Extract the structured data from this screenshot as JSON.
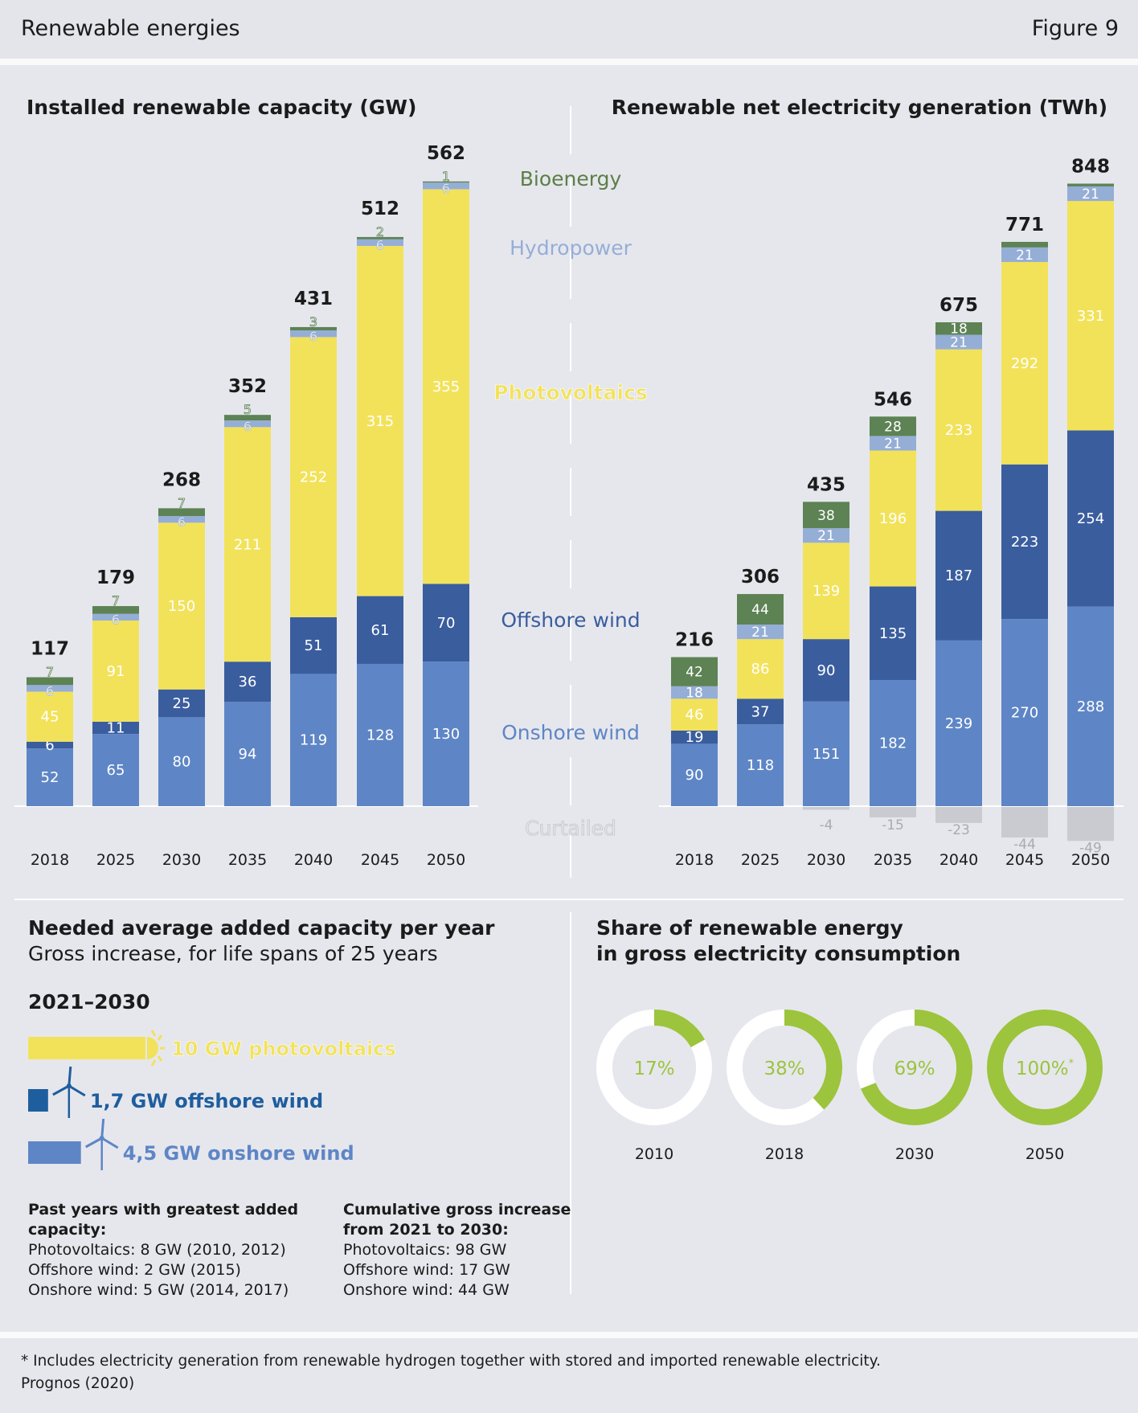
{
  "header": {
    "title": "Renewable energies",
    "figure": "Figure 9"
  },
  "chart_data": [
    {
      "type": "bar",
      "title": "Installed renewable capacity (GW)",
      "stacked": true,
      "categories": [
        "2018",
        "2025",
        "2030",
        "2035",
        "2040",
        "2045",
        "2050"
      ],
      "totals": [
        117,
        179,
        268,
        352,
        431,
        512,
        562
      ],
      "series": [
        {
          "name": "Onshore wind",
          "color": "#5e86c6",
          "values": [
            52,
            65,
            80,
            94,
            119,
            128,
            130
          ]
        },
        {
          "name": "Offshore wind",
          "color": "#3a5d9e",
          "values": [
            6,
            11,
            25,
            36,
            51,
            61,
            70
          ]
        },
        {
          "name": "Photovoltaics",
          "color": "#f2e25a",
          "values": [
            45,
            91,
            150,
            211,
            252,
            315,
            355
          ]
        },
        {
          "name": "Hydropower",
          "color": "#95aed6",
          "values": [
            6,
            6,
            6,
            6,
            6,
            6,
            6
          ]
        },
        {
          "name": "Bioenergy",
          "color": "#5d8254",
          "values": [
            7,
            7,
            7,
            5,
            3,
            2,
            1
          ]
        }
      ]
    },
    {
      "type": "bar",
      "title": "Renewable net electricity generation (TWh)",
      "stacked": true,
      "categories": [
        "2018",
        "2025",
        "2030",
        "2035",
        "2040",
        "2045",
        "2050"
      ],
      "totals": [
        216,
        306,
        435,
        546,
        675,
        771,
        848
      ],
      "series": [
        {
          "name": "Onshore wind",
          "color": "#5e86c6",
          "values": [
            90,
            118,
            151,
            182,
            239,
            270,
            288
          ]
        },
        {
          "name": "Offshore wind",
          "color": "#3a5d9e",
          "values": [
            19,
            37,
            90,
            135,
            187,
            223,
            254
          ]
        },
        {
          "name": "Photovoltaics",
          "color": "#f2e25a",
          "values": [
            46,
            86,
            139,
            196,
            233,
            292,
            331
          ]
        },
        {
          "name": "Hydropower",
          "color": "#95aed6",
          "values": [
            18,
            21,
            21,
            21,
            21,
            21,
            21
          ]
        },
        {
          "name": "Bioenergy",
          "color": "#5d8254",
          "values": [
            42,
            44,
            38,
            28,
            18,
            8,
            4
          ]
        },
        {
          "name": "Curtailed",
          "color": "#c9cbd0",
          "values": [
            null,
            null,
            -4,
            -15,
            -23,
            -44,
            -49
          ]
        }
      ]
    },
    {
      "type": "bar",
      "title": "Needed average added capacity per year",
      "subtitle": "Gross increase, for life spans of 25 years",
      "period": "2021–2030",
      "categories": [
        "photovoltaics",
        "offshore wind",
        "onshore wind"
      ],
      "values": [
        10,
        1.7,
        4.5
      ],
      "labels": [
        "10 GW photovoltaics",
        "1,7 GW offshore wind",
        "4,5 GW onshore wind"
      ],
      "colors": [
        "#f2e25a",
        "#1f5e9e",
        "#5e86c6"
      ]
    },
    {
      "type": "pie",
      "title": "Share of renewable energy",
      "subtitle": "in gross electricity consumption",
      "categories": [
        "2010",
        "2018",
        "2030",
        "2050"
      ],
      "values": [
        17,
        38,
        69,
        100
      ],
      "labels": [
        "17%",
        "38%",
        "69%",
        "100%"
      ],
      "footnote_mark": [
        null,
        null,
        null,
        "*"
      ],
      "color": "#9cc43d"
    }
  ],
  "legend_center": {
    "bioenergy": "Bioenergy",
    "hydropower": "Hydropower",
    "photovoltaics": "Photovoltaics",
    "offshore": "Offshore wind",
    "onshore": "Onshore wind",
    "curtailed": "Curtailed"
  },
  "notes": {
    "past_title": "Past years with greatest added capacity:",
    "past_lines": [
      "Photovoltaics: 8 GW (2010, 2012)",
      "Offshore wind: 2 GW (2015)",
      "Onshore wind: 5 GW (2014, 2017)"
    ],
    "cum_title": "Cumulative gross increase from 2021 to 2030:",
    "cum_lines": [
      "Photovoltaics: 98 GW",
      "Offshore wind: 17 GW",
      "Onshore wind: 44 GW"
    ]
  },
  "footer": {
    "footnote": "*  Includes electricity generation from renewable hydrogen together with stored and imported renewable electricity.",
    "source": "Prognos (2020)"
  },
  "colors": {
    "background": "#e6e7ed",
    "accent_green": "#9cc43d",
    "legend_green": "#5d7e47",
    "legend_blue": "#3a5d9e"
  }
}
